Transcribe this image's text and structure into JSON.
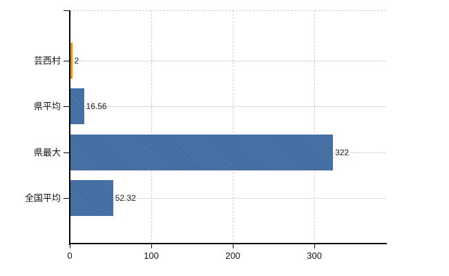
{
  "chart_data": {
    "type": "bar",
    "orientation": "horizontal",
    "title": "",
    "categories": [
      "芸西村",
      "県平均",
      "県最大",
      "全国平均"
    ],
    "values": [
      2,
      16.56,
      322,
      52.32
    ],
    "value_labels": [
      "2",
      "16.56",
      "322",
      "52.32"
    ],
    "series": [
      {
        "name": "value",
        "values": [
          2,
          16.56,
          322,
          52.32
        ]
      }
    ],
    "bar_colors": [
      "#ed9221",
      "#3e6ca7",
      "#3e6ca7",
      "#3e6ca7"
    ],
    "x_ticks": [
      0,
      100,
      200,
      300
    ],
    "x_tick_labels": [
      "0",
      "100",
      "200",
      "300"
    ],
    "xlim": [
      0,
      388
    ],
    "xlabel": "",
    "ylabel": "",
    "grid": "on",
    "legend": "none",
    "colors": {
      "bar_blue": "#3e6ca7",
      "bar_orange": "#ed9221",
      "axis": "#000000",
      "gridline_solid": "#d8dcd8",
      "gridline_dashed": "#d0d0d0",
      "text": "#1c1c1c",
      "background": "#ffffff"
    }
  }
}
